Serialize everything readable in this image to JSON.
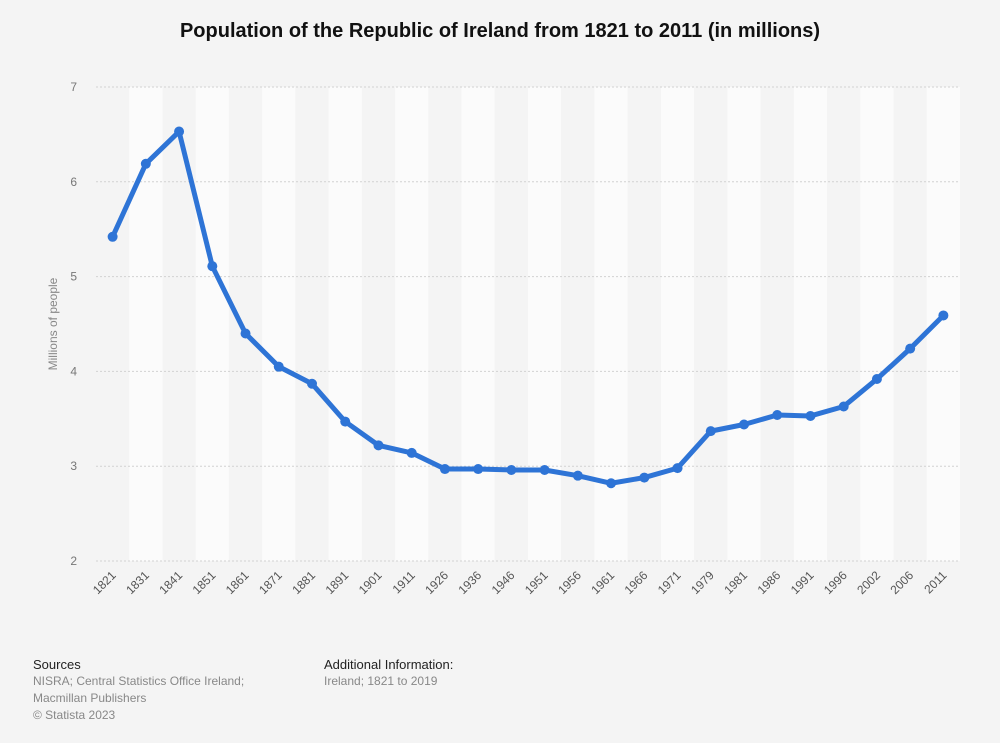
{
  "title": "Population of the Republic of Ireland from 1821 to 2011 (in millions)",
  "footer": {
    "sources_label": "Sources",
    "sources_text": "NISRA; Central Statistics Office Ireland; Macmillan Publishers",
    "copyright": "© Statista 2023",
    "additional_label": "Additional Information:",
    "additional_text": "Ireland; 1821 to 2019"
  },
  "chart_data": {
    "type": "line",
    "title": "Population of the Republic of Ireland from 1821 to 2011 (in millions)",
    "xlabel": "",
    "ylabel": "Millions of people",
    "ylim": [
      2,
      7
    ],
    "yticks": [
      2,
      3,
      4,
      5,
      6,
      7
    ],
    "grid": true,
    "color": "#2e74d6",
    "categories": [
      "1821",
      "1831",
      "1841",
      "1851",
      "1861",
      "1871",
      "1881",
      "1891",
      "1901",
      "1911",
      "1926",
      "1936",
      "1946",
      "1951",
      "1956",
      "1961",
      "1966",
      "1971",
      "1979",
      "1981",
      "1986",
      "1991",
      "1996",
      "2002",
      "2006",
      "2011"
    ],
    "values": [
      5.42,
      6.19,
      6.53,
      5.11,
      4.4,
      4.05,
      3.87,
      3.47,
      3.22,
      3.14,
      2.97,
      2.97,
      2.96,
      2.96,
      2.9,
      2.82,
      2.88,
      2.98,
      3.37,
      3.44,
      3.54,
      3.53,
      3.63,
      3.92,
      4.24,
      4.59
    ]
  }
}
